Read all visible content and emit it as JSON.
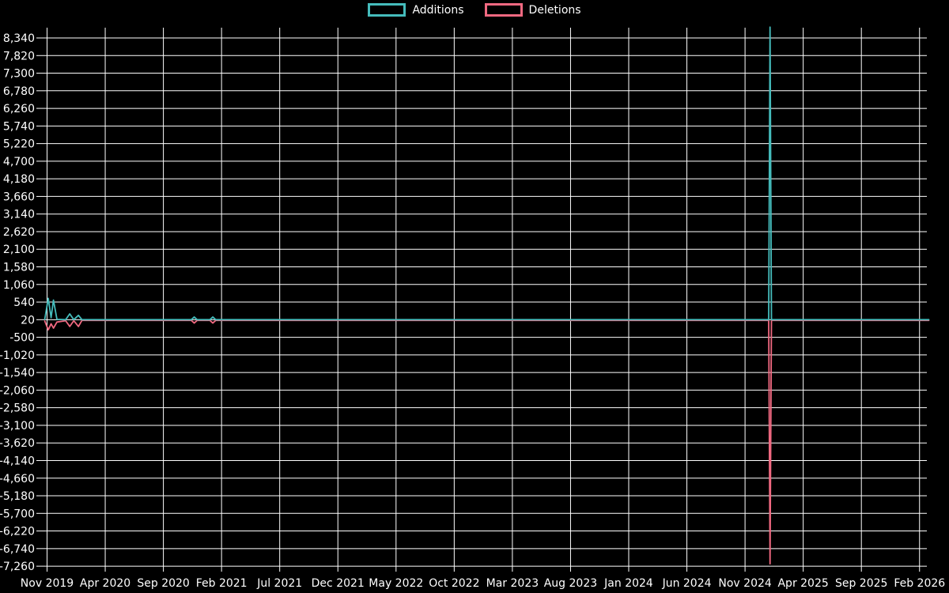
{
  "chart_data": {
    "type": "line",
    "title": "",
    "xlabel": "",
    "ylabel": "",
    "grid": true,
    "background_color": "#000000",
    "gridline_color": "#ffffff",
    "text_color": "#ffffff",
    "legend": {
      "position": "top-center",
      "entries": [
        "Additions",
        "Deletions"
      ]
    },
    "x_axis": {
      "unit": "months since Nov 2019",
      "tick_labels": [
        "Nov 2019",
        "Apr 2020",
        "Sep 2020",
        "Feb 2021",
        "Jul 2021",
        "Dec 2021",
        "May 2022",
        "Oct 2022",
        "Mar 2023",
        "Aug 2023",
        "Jan 2024",
        "Jun 2024",
        "Nov 2024",
        "Apr 2025",
        "Sep 2025",
        "Feb 2026"
      ],
      "months_per_tick": 5
    },
    "y_axis": {
      "tick_step": 520,
      "tick_values": [
        8340,
        7820,
        7300,
        6780,
        6260,
        5740,
        5220,
        4700,
        4180,
        3660,
        3140,
        2620,
        2100,
        1580,
        1060,
        540,
        20,
        -500,
        -1020,
        -1540,
        -2060,
        -2580,
        -3100,
        -3620,
        -4140,
        -4660,
        -5180,
        -5700,
        -6220,
        -6740,
        -7260
      ],
      "ylim": [
        -7260,
        8660
      ]
    },
    "series": [
      {
        "name": "Additions",
        "color": "#45bcbc",
        "points": [
          [
            -0.2,
            30
          ],
          [
            0.1,
            650
          ],
          [
            0.35,
            80
          ],
          [
            0.55,
            600
          ],
          [
            0.85,
            30
          ],
          [
            1.6,
            20
          ],
          [
            1.95,
            190
          ],
          [
            2.3,
            20
          ],
          [
            2.7,
            150
          ],
          [
            3.0,
            20
          ],
          [
            12.4,
            20
          ],
          [
            12.65,
            100
          ],
          [
            12.9,
            20
          ],
          [
            14.0,
            20
          ],
          [
            14.25,
            100
          ],
          [
            14.5,
            20
          ],
          [
            62.03,
            20
          ],
          [
            62.15,
            8660
          ],
          [
            62.27,
            20
          ],
          [
            75.8,
            20
          ]
        ]
      },
      {
        "name": "Deletions",
        "color": "#f16981",
        "points": [
          [
            -0.2,
            -20
          ],
          [
            0.1,
            -280
          ],
          [
            0.35,
            -100
          ],
          [
            0.55,
            -230
          ],
          [
            0.85,
            -50
          ],
          [
            1.6,
            -10
          ],
          [
            1.95,
            -180
          ],
          [
            2.3,
            -10
          ],
          [
            2.7,
            -180
          ],
          [
            3.0,
            0
          ],
          [
            12.4,
            0
          ],
          [
            12.65,
            -80
          ],
          [
            12.9,
            0
          ],
          [
            14.0,
            0
          ],
          [
            14.25,
            -80
          ],
          [
            14.5,
            0
          ],
          [
            62.03,
            0
          ],
          [
            62.15,
            -7190
          ],
          [
            62.27,
            0
          ],
          [
            75.8,
            0
          ]
        ]
      }
    ],
    "key_weeks": [
      {
        "approx_week": "early Nov 2019",
        "additions": 650,
        "deletions": -280
      },
      {
        "approx_week": "mid Nov 2019",
        "additions": 600,
        "deletions": -230
      },
      {
        "approx_week": "late Dec 2019",
        "additions": 190,
        "deletions": -180
      },
      {
        "approx_week": "mid Jan 2020",
        "additions": 150,
        "deletions": -180
      },
      {
        "approx_week": "late Nov 2020",
        "additions": 100,
        "deletions": -80
      },
      {
        "approx_week": "mid Jan 2021",
        "additions": 100,
        "deletions": -80
      },
      {
        "approx_week": "mid Jan 2025",
        "additions": 8660,
        "deletions": -7190
      }
    ]
  }
}
